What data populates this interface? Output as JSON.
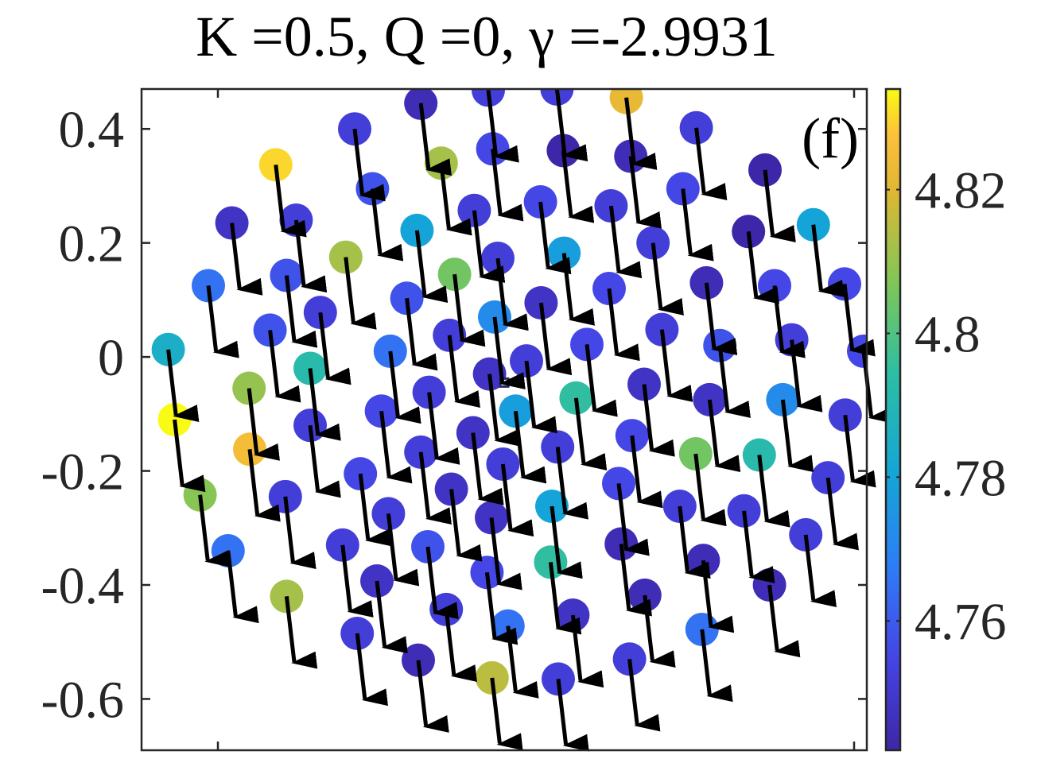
{
  "chart_data": {
    "type": "scatter",
    "title": "K =0.5, Q =0, γ =-2.9931",
    "panel_label": "(f)",
    "xlim": [
      -0.57,
      0.57
    ],
    "ylim": [
      -0.69,
      0.47
    ],
    "yticks": [
      0.4,
      0.2,
      0,
      -0.2,
      -0.4,
      -0.6
    ],
    "ytick_labels": [
      "0.4",
      "0.2",
      "0",
      "-0.2",
      "-0.4",
      "-0.6"
    ],
    "xticks": [
      -0.45,
      0.55
    ],
    "colorbar": {
      "range": [
        4.742,
        4.834
      ],
      "ticks": [
        4.82,
        4.8,
        4.78,
        4.76
      ],
      "tick_labels": [
        "4.82",
        "4.8",
        "4.78",
        "4.76"
      ],
      "colormap": "parula"
    },
    "arrow_vector": [
      0.012,
      -0.115
    ],
    "center_marker": [
      0.0,
      -0.045
    ],
    "points": [
      {
        "x": -0.131,
        "y": 0.445,
        "c": 4.745
      },
      {
        "x": -0.025,
        "y": 0.468,
        "c": 4.752
      },
      {
        "x": 0.083,
        "y": 0.47,
        "c": 4.752
      },
      {
        "x": 0.192,
        "y": 0.455,
        "c": 4.822
      },
      {
        "x": -0.235,
        "y": 0.4,
        "c": 4.752
      },
      {
        "x": 0.302,
        "y": 0.402,
        "c": 4.752
      },
      {
        "x": -0.018,
        "y": 0.365,
        "c": 4.755
      },
      {
        "x": 0.093,
        "y": 0.362,
        "c": 4.742
      },
      {
        "x": 0.199,
        "y": 0.352,
        "c": 4.745
      },
      {
        "x": -0.359,
        "y": 0.337,
        "c": 4.83
      },
      {
        "x": -0.099,
        "y": 0.34,
        "c": 4.812
      },
      {
        "x": 0.41,
        "y": 0.328,
        "c": 4.742
      },
      {
        "x": -0.207,
        "y": 0.295,
        "c": 4.758
      },
      {
        "x": 0.281,
        "y": 0.295,
        "c": 4.755
      },
      {
        "x": 0.057,
        "y": 0.272,
        "c": 4.755
      },
      {
        "x": -0.047,
        "y": 0.257,
        "c": 4.752
      },
      {
        "x": 0.168,
        "y": 0.265,
        "c": 4.752
      },
      {
        "x": -0.428,
        "y": 0.235,
        "c": 4.748
      },
      {
        "x": -0.327,
        "y": 0.24,
        "c": 4.752
      },
      {
        "x": -0.137,
        "y": 0.222,
        "c": 4.78
      },
      {
        "x": 0.486,
        "y": 0.232,
        "c": 4.78
      },
      {
        "x": 0.384,
        "y": 0.22,
        "c": 4.742
      },
      {
        "x": 0.234,
        "y": 0.2,
        "c": 4.752
      },
      {
        "x": 0.094,
        "y": 0.182,
        "c": 4.778
      },
      {
        "x": -0.249,
        "y": 0.175,
        "c": 4.812
      },
      {
        "x": -0.01,
        "y": 0.173,
        "c": 4.752
      },
      {
        "x": -0.078,
        "y": 0.145,
        "c": 4.805
      },
      {
        "x": -0.342,
        "y": 0.143,
        "c": 4.758
      },
      {
        "x": 0.318,
        "y": 0.13,
        "c": 4.745
      },
      {
        "x": 0.535,
        "y": 0.128,
        "c": 4.755
      },
      {
        "x": -0.465,
        "y": 0.125,
        "c": 4.765
      },
      {
        "x": 0.425,
        "y": 0.125,
        "c": 4.755
      },
      {
        "x": 0.165,
        "y": 0.12,
        "c": 4.755
      },
      {
        "x": -0.153,
        "y": 0.103,
        "c": 4.758
      },
      {
        "x": 0.058,
        "y": 0.095,
        "c": 4.748
      },
      {
        "x": -0.289,
        "y": 0.078,
        "c": 4.752
      },
      {
        "x": -0.015,
        "y": 0.07,
        "c": 4.772
      },
      {
        "x": 0.248,
        "y": 0.048,
        "c": 4.752
      },
      {
        "x": -0.368,
        "y": 0.047,
        "c": 4.758
      },
      {
        "x": -0.086,
        "y": 0.038,
        "c": 4.752
      },
      {
        "x": 0.452,
        "y": 0.03,
        "c": 4.752
      },
      {
        "x": 0.13,
        "y": 0.022,
        "c": 4.755
      },
      {
        "x": 0.339,
        "y": 0.02,
        "c": 4.758
      },
      {
        "x": -0.528,
        "y": 0.013,
        "c": 4.785
      },
      {
        "x": -0.179,
        "y": 0.01,
        "c": 4.765
      },
      {
        "x": 0.565,
        "y": 0.01,
        "c": 4.755
      },
      {
        "x": 0.035,
        "y": -0.007,
        "c": 4.752
      },
      {
        "x": -0.305,
        "y": -0.02,
        "c": 4.792
      },
      {
        "x": -0.023,
        "y": -0.03,
        "c": 4.748
      },
      {
        "x": 0.22,
        "y": -0.048,
        "c": 4.748
      },
      {
        "x": -0.401,
        "y": -0.055,
        "c": 4.81
      },
      {
        "x": -0.118,
        "y": -0.062,
        "c": 4.752
      },
      {
        "x": 0.113,
        "y": -0.072,
        "c": 4.795
      },
      {
        "x": 0.323,
        "y": -0.075,
        "c": 4.748
      },
      {
        "x": 0.438,
        "y": -0.075,
        "c": 4.772
      },
      {
        "x": 0.018,
        "y": -0.095,
        "c": 4.778
      },
      {
        "x": -0.193,
        "y": -0.095,
        "c": 4.755
      },
      {
        "x": -0.518,
        "y": -0.11,
        "c": 4.834
      },
      {
        "x": 0.536,
        "y": -0.102,
        "c": 4.752
      },
      {
        "x": -0.305,
        "y": -0.12,
        "c": 4.752
      },
      {
        "x": -0.049,
        "y": -0.133,
        "c": 4.748
      },
      {
        "x": 0.201,
        "y": -0.138,
        "c": 4.755
      },
      {
        "x": -0.4,
        "y": -0.162,
        "c": 4.825
      },
      {
        "x": 0.084,
        "y": -0.158,
        "c": 4.752
      },
      {
        "x": -0.131,
        "y": -0.167,
        "c": 4.752
      },
      {
        "x": 0.301,
        "y": -0.17,
        "c": 4.805
      },
      {
        "x": 0.401,
        "y": -0.172,
        "c": 4.792
      },
      {
        "x": -0.002,
        "y": -0.188,
        "c": 4.752
      },
      {
        "x": -0.226,
        "y": -0.205,
        "c": 4.755
      },
      {
        "x": 0.509,
        "y": -0.212,
        "c": 4.752
      },
      {
        "x": 0.18,
        "y": -0.222,
        "c": 4.755
      },
      {
        "x": -0.083,
        "y": -0.232,
        "c": 4.748
      },
      {
        "x": -0.478,
        "y": -0.242,
        "c": 4.808
      },
      {
        "x": -0.344,
        "y": -0.245,
        "c": 4.752
      },
      {
        "x": 0.075,
        "y": -0.262,
        "c": 4.78
      },
      {
        "x": 0.276,
        "y": -0.262,
        "c": 4.752
      },
      {
        "x": -0.182,
        "y": -0.275,
        "c": 4.752
      },
      {
        "x": 0.377,
        "y": -0.27,
        "c": 4.752
      },
      {
        "x": -0.02,
        "y": -0.282,
        "c": 4.748
      },
      {
        "x": 0.474,
        "y": -0.312,
        "c": 4.752
      },
      {
        "x": -0.254,
        "y": -0.33,
        "c": 4.752
      },
      {
        "x": 0.184,
        "y": -0.328,
        "c": 4.745
      },
      {
        "x": -0.12,
        "y": -0.333,
        "c": 4.758
      },
      {
        "x": -0.434,
        "y": -0.34,
        "c": 4.765
      },
      {
        "x": 0.313,
        "y": -0.357,
        "c": 4.745
      },
      {
        "x": 0.073,
        "y": -0.36,
        "c": 4.795
      },
      {
        "x": -0.027,
        "y": -0.378,
        "c": 4.755
      },
      {
        "x": -0.2,
        "y": -0.393,
        "c": 4.748
      },
      {
        "x": 0.417,
        "y": -0.4,
        "c": 4.745
      },
      {
        "x": 0.221,
        "y": -0.418,
        "c": 4.745
      },
      {
        "x": -0.342,
        "y": -0.42,
        "c": 4.812
      },
      {
        "x": -0.091,
        "y": -0.443,
        "c": 4.752
      },
      {
        "x": 0.108,
        "y": -0.453,
        "c": 4.748
      },
      {
        "x": 0.006,
        "y": -0.472,
        "c": 4.765
      },
      {
        "x": 0.311,
        "y": -0.478,
        "c": 4.765
      },
      {
        "x": -0.231,
        "y": -0.485,
        "c": 4.752
      },
      {
        "x": 0.197,
        "y": -0.53,
        "c": 4.752
      },
      {
        "x": -0.135,
        "y": -0.532,
        "c": 4.745
      },
      {
        "x": -0.019,
        "y": -0.563,
        "c": 4.815
      },
      {
        "x": 0.085,
        "y": -0.565,
        "c": 4.752
      }
    ]
  }
}
